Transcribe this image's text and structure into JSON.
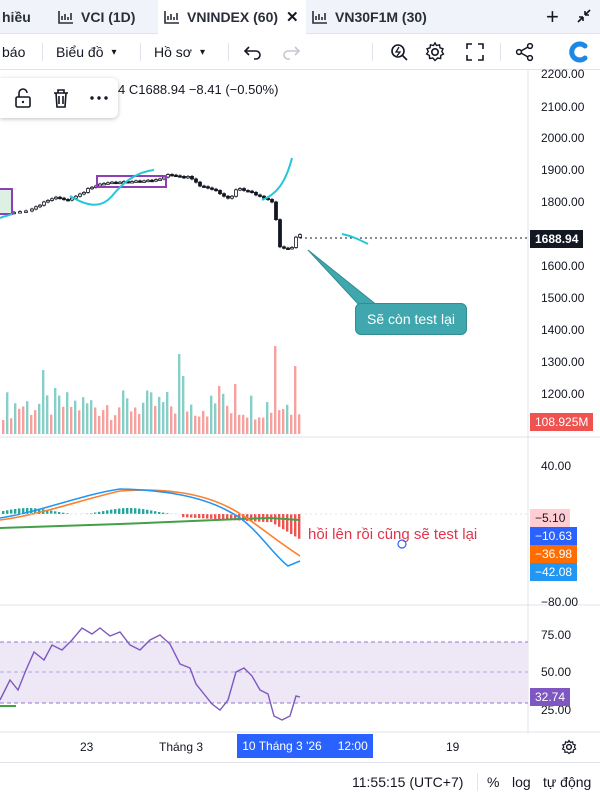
{
  "tabs": [
    {
      "label": "hiều",
      "active": false
    },
    {
      "label": "VCI (1D)",
      "active": false
    },
    {
      "label": "VNINDEX (60)",
      "active": true
    },
    {
      "label": "VN30F1M (30)",
      "active": false
    }
  ],
  "toolbar": {
    "alerts_label": "báo",
    "chart_label": "Biểu đồ",
    "profile_label": "Hồ sơ"
  },
  "legend": {
    "ohlc_text": "4  C1688.94  −8.41 (−0.50%)"
  },
  "price_axis": {
    "ticks": [
      "2200.00",
      "2100.00",
      "2000.00",
      "1900.00",
      "1800.00",
      "1700.00",
      "1600.00",
      "1500.00",
      "1400.00",
      "1300.00",
      "1200.00"
    ],
    "current_price": "1688.94",
    "volume_value": "108.925M"
  },
  "macd_axis": {
    "ticks": [
      "40.00",
      "0.00",
      "−80.00"
    ],
    "values": {
      "histogram": "−5.10",
      "macd": "−10.63",
      "signal": "−36.98",
      "other": "−42.08"
    }
  },
  "rsi_axis": {
    "ticks": [
      "75.00",
      "50.00",
      "25.00"
    ],
    "value": "32.74"
  },
  "annotations": {
    "callout": "Sẽ còn test lại",
    "note": "hồi lên rồi cũng sẽ test lại"
  },
  "time_axis": {
    "labels": [
      "23",
      "Tháng 3",
      "19"
    ],
    "cursor_date": "10 Tháng 3 '26",
    "cursor_time": "12:00"
  },
  "status_bar": {
    "clock": "11:55:15 (UTC+7)",
    "percent": "%",
    "log": "log",
    "auto": "tự động"
  },
  "colors": {
    "up": "#26a69a",
    "down": "#ef5350",
    "accent": "#2962ff",
    "callout": "#3fa7ad",
    "rsi_band": "#ede7f6"
  }
}
